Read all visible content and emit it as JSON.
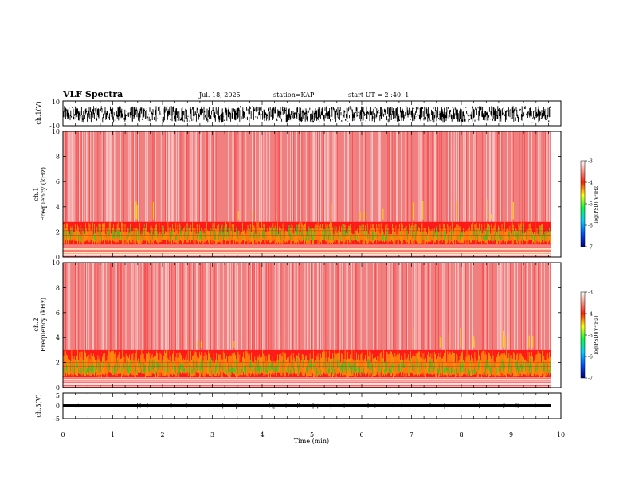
{
  "header": {
    "title": "VLF Spectra",
    "date": "Jul. 18, 2025",
    "station": "station=KAP",
    "start": "start UT = 2 :40: 1"
  },
  "colors": {
    "spectrogram_background": "#f08080",
    "band_red": "#ff1a1a",
    "band_yellow": "#ffd700",
    "band_green": "#22dd22",
    "colorbar": [
      "#0000a0",
      "#0060ff",
      "#00e0ff",
      "#00ff40",
      "#ffff00",
      "#ff2000",
      "#ffffff"
    ]
  },
  "chart_data": [
    {
      "type": "line",
      "name": "ch1-waveform",
      "ylabel": "ch.1(V)",
      "ylim": [
        -10,
        10
      ],
      "yticks": [
        "10",
        "-10"
      ],
      "xlim": [
        0,
        10
      ],
      "description_values": "dense waveform oscillating approximately between -7 and 6 V over 0–9.8 min",
      "amplitude_range": [
        -7,
        6
      ]
    },
    {
      "type": "heatmap",
      "name": "ch1-spectrogram",
      "ylabel": "ch.1\nFrequency (kHz)",
      "ylim": [
        0,
        10
      ],
      "yticks": [
        "0",
        "2",
        "4",
        "6",
        "8",
        "10"
      ],
      "xlim": [
        0,
        10
      ],
      "data_extent_min": 9.8,
      "colorbar": {
        "label": "log(PSD)(V²/Hz)",
        "ticks": [
          "-3",
          "-4",
          "-5",
          "-6",
          "-7"
        ],
        "range": [
          -7,
          -3
        ]
      },
      "bands": [
        {
          "from_khz": 1.0,
          "to_khz": 2.8,
          "level": -4.5
        },
        {
          "from_khz": 0.0,
          "to_khz": 0.8,
          "level": -4.2
        }
      ]
    },
    {
      "type": "heatmap",
      "name": "ch2-spectrogram",
      "ylabel": "ch.2\nFrequency (kHz)",
      "ylim": [
        0,
        10
      ],
      "yticks": [
        "0",
        "2",
        "4",
        "6",
        "8",
        "10"
      ],
      "xlim": [
        0,
        10
      ],
      "data_extent_min": 9.8,
      "colorbar": {
        "label": "log(PSD)(V²/Hz)",
        "ticks": [
          "-3",
          "-4",
          "-5",
          "-6",
          "-7"
        ],
        "range": [
          -7,
          -3
        ]
      },
      "bands": [
        {
          "from_khz": 0.8,
          "to_khz": 3.0,
          "level": -4.8
        },
        {
          "from_khz": 0.0,
          "to_khz": 0.8,
          "level": -4.2
        }
      ]
    },
    {
      "type": "line",
      "name": "ch3-waveform",
      "ylabel": "ch.3(V)",
      "ylim": [
        -5,
        5
      ],
      "yticks": [
        "5",
        "0",
        "-5"
      ],
      "xlim": [
        0,
        10
      ],
      "amplitude_range": [
        -0.3,
        0.3
      ],
      "xlabel": "Time (min)",
      "xticks": [
        "0",
        "1",
        "2",
        "3",
        "4",
        "5",
        "6",
        "7",
        "8",
        "9",
        "10"
      ]
    }
  ]
}
